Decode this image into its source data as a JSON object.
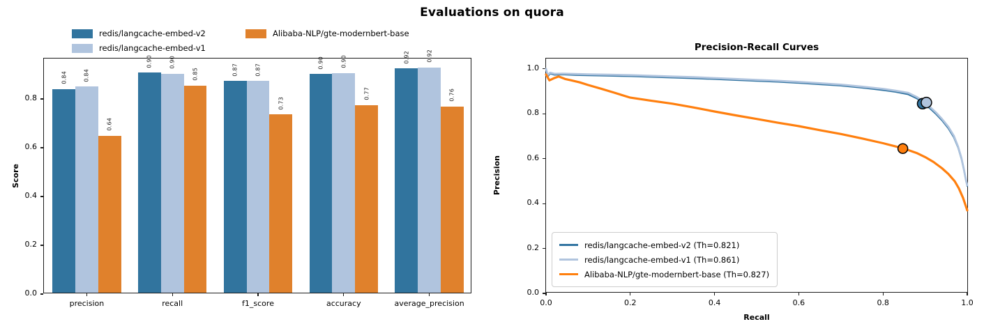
{
  "figure": {
    "title": "Evaluations on quora"
  },
  "legend": {
    "items": [
      {
        "label": "redis/langcache-embed-v2",
        "color": "#31749e"
      },
      {
        "label": "redis/langcache-embed-v1",
        "color": "#b0c4de"
      },
      {
        "label": "Alibaba-NLP/gte-modernbert-base",
        "color": "#e0812c"
      }
    ]
  },
  "chart_data": [
    {
      "type": "bar",
      "title": "",
      "xlabel": "",
      "ylabel": "Score",
      "categories": [
        "precision",
        "recall",
        "f1_score",
        "accuracy",
        "average_precision"
      ],
      "yticks": [
        0.0,
        0.2,
        0.4,
        0.6,
        0.8
      ],
      "ylim": [
        0,
        0.966
      ],
      "legend_position": "figure top-left, no frame",
      "grid": false,
      "series": [
        {
          "name": "redis/langcache-embed-v2",
          "color": "#31749e",
          "values": [
            0.84,
            0.9,
            0.87,
            0.9,
            0.92
          ],
          "values_exact": [
            0.836,
            0.902,
            0.868,
            0.897,
            0.919
          ],
          "bar_labels": [
            "0.84",
            "0.90",
            "0.87",
            "0.90",
            "0.92"
          ]
        },
        {
          "name": "redis/langcache-embed-v1",
          "color": "#b0c4de",
          "values": [
            0.84,
            0.9,
            0.87,
            0.9,
            0.92
          ],
          "values_exact": [
            0.845,
            0.898,
            0.868,
            0.9,
            0.923
          ],
          "bar_labels": [
            "0.84",
            "0.90",
            "0.87",
            "0.90",
            "0.92"
          ]
        },
        {
          "name": "Alibaba-NLP/gte-modernbert-base",
          "color": "#e0812c",
          "values": [
            0.64,
            0.85,
            0.73,
            0.77,
            0.76
          ],
          "values_exact": [
            0.643,
            0.849,
            0.731,
            0.77,
            0.763
          ],
          "bar_labels": [
            "0.64",
            "0.85",
            "0.73",
            "0.77",
            "0.76"
          ]
        }
      ]
    },
    {
      "type": "line",
      "title": "Precision-Recall Curves",
      "xlabel": "Recall",
      "ylabel": "Precision",
      "xticks": [
        0.0,
        0.2,
        0.4,
        0.6,
        0.8,
        1.0
      ],
      "yticks": [
        0.0,
        0.2,
        0.4,
        0.6,
        0.8,
        1.0
      ],
      "xlim": [
        0,
        1.0
      ],
      "ylim": [
        0,
        1.046
      ],
      "legend_position": "lower left",
      "grid": false,
      "series": [
        {
          "name": "redis/langcache-embed-v2 (Th=0.821)",
          "threshold": 0.821,
          "color": "#3274a1",
          "line_width": 2.1,
          "x": [
            0,
            0.004,
            0.01,
            0.02,
            0.04,
            0.07,
            0.1,
            0.15,
            0.2,
            0.25,
            0.3,
            0.35,
            0.4,
            0.45,
            0.5,
            0.55,
            0.6,
            0.65,
            0.7,
            0.75,
            0.8,
            0.83,
            0.86,
            0.88,
            0.896,
            0.91,
            0.925,
            0.94,
            0.955,
            0.968,
            0.978,
            0.986,
            0.992,
            0.997,
            1.0
          ],
          "y": [
            1.0,
            0.966,
            0.979,
            0.973,
            0.975,
            0.972,
            0.971,
            0.969,
            0.967,
            0.964,
            0.961,
            0.958,
            0.954,
            0.95,
            0.946,
            0.942,
            0.937,
            0.931,
            0.925,
            0.916,
            0.905,
            0.897,
            0.886,
            0.868,
            0.848,
            0.826,
            0.8,
            0.77,
            0.735,
            0.695,
            0.65,
            0.6,
            0.548,
            0.5,
            0.478
          ],
          "marker": {
            "x": 0.894,
            "y": 0.845,
            "radius": 7.5
          }
        },
        {
          "name": "redis/langcache-embed-v1 (Th=0.861)",
          "threshold": 0.861,
          "color": "#b0c4de",
          "line_width": 2.8,
          "x": [
            0,
            0.004,
            0.01,
            0.02,
            0.04,
            0.07,
            0.1,
            0.15,
            0.2,
            0.25,
            0.3,
            0.35,
            0.4,
            0.45,
            0.5,
            0.55,
            0.6,
            0.65,
            0.7,
            0.75,
            0.8,
            0.83,
            0.86,
            0.88,
            0.896,
            0.91,
            0.925,
            0.94,
            0.955,
            0.968,
            0.978,
            0.986,
            0.992,
            0.997,
            1.0
          ],
          "y": [
            1.0,
            0.972,
            0.983,
            0.978,
            0.979,
            0.977,
            0.976,
            0.974,
            0.972,
            0.969,
            0.966,
            0.963,
            0.959,
            0.955,
            0.951,
            0.947,
            0.942,
            0.936,
            0.93,
            0.921,
            0.911,
            0.903,
            0.893,
            0.875,
            0.855,
            0.833,
            0.807,
            0.777,
            0.742,
            0.702,
            0.655,
            0.605,
            0.552,
            0.505,
            0.482
          ],
          "marker": {
            "x": 0.903,
            "y": 0.85,
            "radius": 7.5
          }
        },
        {
          "name": "Alibaba-NLP/gte-modernbert-base (Th=0.827)",
          "threshold": 0.827,
          "color": "#ff7f0e",
          "line_width": 3.2,
          "x": [
            0,
            0.008,
            0.018,
            0.03,
            0.045,
            0.06,
            0.08,
            0.1,
            0.13,
            0.16,
            0.2,
            0.25,
            0.3,
            0.35,
            0.4,
            0.45,
            0.5,
            0.55,
            0.6,
            0.65,
            0.7,
            0.75,
            0.8,
            0.85,
            0.88,
            0.9,
            0.92,
            0.94,
            0.955,
            0.97,
            0.98,
            0.99,
            1.0
          ],
          "y": [
            0.975,
            0.949,
            0.958,
            0.966,
            0.955,
            0.949,
            0.94,
            0.928,
            0.912,
            0.895,
            0.872,
            0.858,
            0.845,
            0.828,
            0.81,
            0.793,
            0.777,
            0.76,
            0.745,
            0.727,
            0.71,
            0.69,
            0.669,
            0.645,
            0.625,
            0.607,
            0.585,
            0.557,
            0.532,
            0.5,
            0.468,
            0.425,
            0.37
          ],
          "marker": {
            "x": 0.847,
            "y": 0.645,
            "radius": 7
          }
        }
      ]
    }
  ]
}
